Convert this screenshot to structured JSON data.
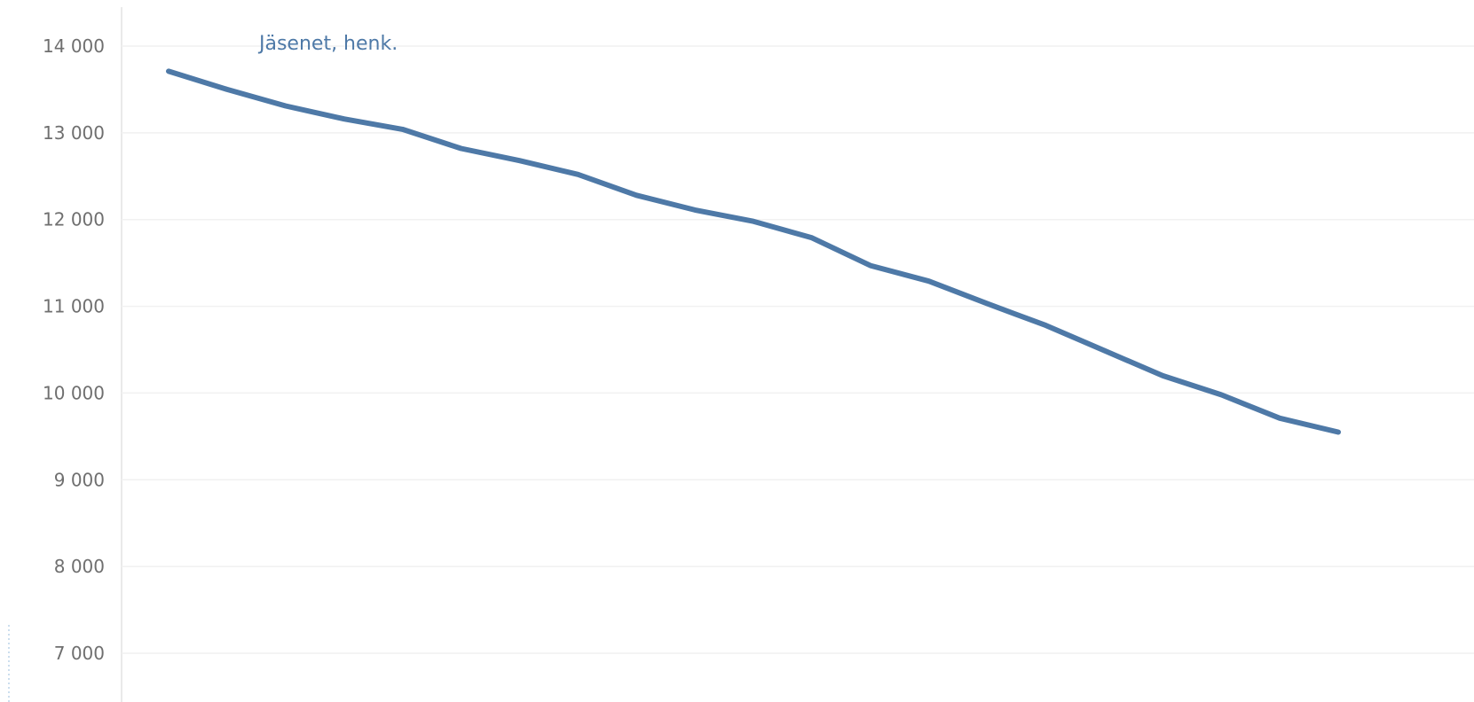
{
  "chart_data": {
    "type": "line",
    "title": "",
    "xlabel": "",
    "ylabel": "",
    "ylim": [
      7000,
      14000
    ],
    "y_ticks": [
      14000,
      13000,
      12000,
      11000,
      10000,
      9000,
      8000,
      7000
    ],
    "y_tick_labels": [
      "14 000",
      "13 000",
      "12 000",
      "11 000",
      "10 000",
      "9 000",
      "8 000",
      "7 000"
    ],
    "grid": true,
    "series": [
      {
        "name": "Jäsenet, henk.",
        "color": "#4e79a7",
        "values": [
          13710,
          13500,
          13310,
          13160,
          13040,
          12820,
          12680,
          12520,
          12280,
          12110,
          11980,
          11790,
          11470,
          11290,
          11030,
          10780,
          10490,
          10200,
          9980,
          9710,
          9550
        ]
      }
    ]
  }
}
